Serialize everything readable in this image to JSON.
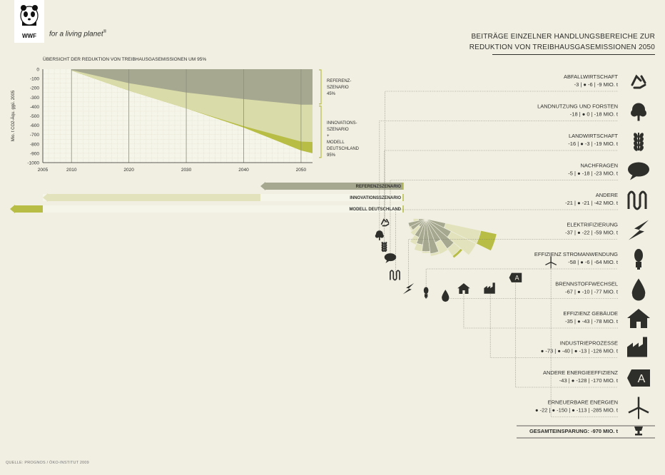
{
  "brand": {
    "logo_text": "WWF",
    "tagline": "for a living planet",
    "tagline_mark": "®",
    "icon": "panda-icon"
  },
  "header": {
    "title_lines": [
      "BEITRÄGE EINZELNER HANDLUNGSBEREICHE ZUR",
      "REDUKTION VON TREIBHAUSGASEMISSIONEN 2050"
    ]
  },
  "source": "QUELLE: PROGNOS / ÖKO-INSTITUT 2009",
  "colors": {
    "background": "#f1efe2",
    "referenz": "#a6a890",
    "innovation": "#d9dba9",
    "modell": "#b7bd45",
    "innovation_light": "#e2e3bd",
    "grid": "#ffffff",
    "text": "#2e2e2b"
  },
  "chart_data": [
    {
      "type": "area",
      "title": "ÜBERSICHT DER REDUKTION VON TREIBHAUSGASEMISSIONEN UM 95%",
      "ylabel": "Mio. t CO2-Äqu. ggü. 2005",
      "xlim": [
        2005,
        2052
      ],
      "ylim": [
        -1000,
        0
      ],
      "xticks": [
        "2005",
        "2010",
        "2020",
        "2030",
        "2040",
        "2050"
      ],
      "yticks": [
        "0",
        "-100",
        "-200",
        "-300",
        "-400",
        "-500",
        "-600",
        "-700",
        "-800",
        "-900",
        "-1000"
      ],
      "x": [
        2010,
        2020,
        2030,
        2040,
        2050,
        2052
      ],
      "series": [
        {
          "name": "REFERENZ-SZENARIO",
          "values": [
            -10,
            -150,
            -250,
            -320,
            -380,
            -380
          ]
        },
        {
          "name": "INNOVATIONS-SZENARIO",
          "values": [
            -15,
            -230,
            -420,
            -610,
            -775,
            -780
          ]
        },
        {
          "name": "MODELL DEUTSCHLAND",
          "values": [
            -15,
            -230,
            -420,
            -625,
            -870,
            -900
          ]
        }
      ],
      "annotations": [
        {
          "lines": [
            "REFERENZ-",
            "SZENARIO",
            "45%"
          ]
        },
        {
          "lines": [
            "INNOVATIONS-",
            "SZENARIO",
            "+",
            "MODELL",
            "DEUTSCHLAND",
            "95%"
          ]
        }
      ]
    },
    {
      "type": "bar",
      "subtype": "stacked-radial",
      "legend": [
        "REFERENZSZENARIO",
        "INNOVATIONSSZENARIO",
        "MODELL DEUTSCHLAND"
      ],
      "unit": "MIO. t",
      "total_label": "GESAMTEINSPARUNG: -970 MIO. t",
      "total_icon": "trophy-icon",
      "categories": [
        {
          "name": "ABFALLWIRTSCHAFT",
          "icon": "recycle-icon",
          "values_text": "-3 | ● -6 | -9 MIO. t",
          "values": [
            -3,
            -6,
            0
          ],
          "total": -9
        },
        {
          "name": "LANDNUTZUNG UND FORSTEN",
          "icon": "tree-icon",
          "values_text": "-18 | ● 0 | -18 MIO. t",
          "values": [
            -18,
            0,
            0
          ],
          "total": -18
        },
        {
          "name": "LANDWIRTSCHAFT",
          "icon": "wheat-icon",
          "values_text": "-16 | ● -3 | -19 MIO. t",
          "values": [
            -16,
            -3,
            0
          ],
          "total": -19
        },
        {
          "name": "NACHFRAGEN",
          "icon": "speech-bubble-icon",
          "values_text": "-5 | ● -18 | -23 MIO. t",
          "values": [
            -5,
            -18,
            0
          ],
          "total": -23
        },
        {
          "name": "ANDERE",
          "icon": "coil-icon",
          "values_text": "-21 | ● -21 | -42 MIO. t",
          "values": [
            -21,
            -21,
            0
          ],
          "total": -42
        },
        {
          "name": "ELEKTRIFIZIERUNG",
          "icon": "lightning-icon",
          "values_text": "-37 | ● -22 | -59 MIO. t",
          "values": [
            -37,
            -22,
            0
          ],
          "total": -59
        },
        {
          "name": "EFFIZIENZ STROMANWENDUNG",
          "icon": "bulb-icon",
          "values_text": "-58 | ● -6 | -64 MIO. t",
          "values": [
            -58,
            -6,
            0
          ],
          "total": -64
        },
        {
          "name": "BRENNSTOFFWECHSEL",
          "icon": "drop-icon",
          "values_text": "-67 | ● -10 | -77 MIO. t",
          "values": [
            -67,
            -10,
            0
          ],
          "total": -77
        },
        {
          "name": "EFFIZIENZ GEBÄUDE",
          "icon": "house-icon",
          "values_text": "-35 | ● -43 | -78 MIO. t",
          "values": [
            -35,
            -43,
            0
          ],
          "total": -78
        },
        {
          "name": "INDUSTRIEPROZESSE",
          "icon": "factory-icon",
          "values_text": "● -73 | ● -40 | ● -13 | -126 MIO. t",
          "values": [
            -73,
            -40,
            -13
          ],
          "total": -126
        },
        {
          "name": "ANDERE ENERGIEEFFIZIENZ",
          "icon": "energy-label-icon",
          "values_text": "-43 | ● -128 | -170 MIO. t",
          "values": [
            -43,
            -128,
            0
          ],
          "total": -170
        },
        {
          "name": "ERNEUERBARE ENERGIEN",
          "icon": "wind-turbine-icon",
          "values_text": "● -22 | ● -150 | ● -113 | -285 MIO. t",
          "values": [
            -22,
            -150,
            -113
          ],
          "total": -285
        }
      ]
    }
  ]
}
